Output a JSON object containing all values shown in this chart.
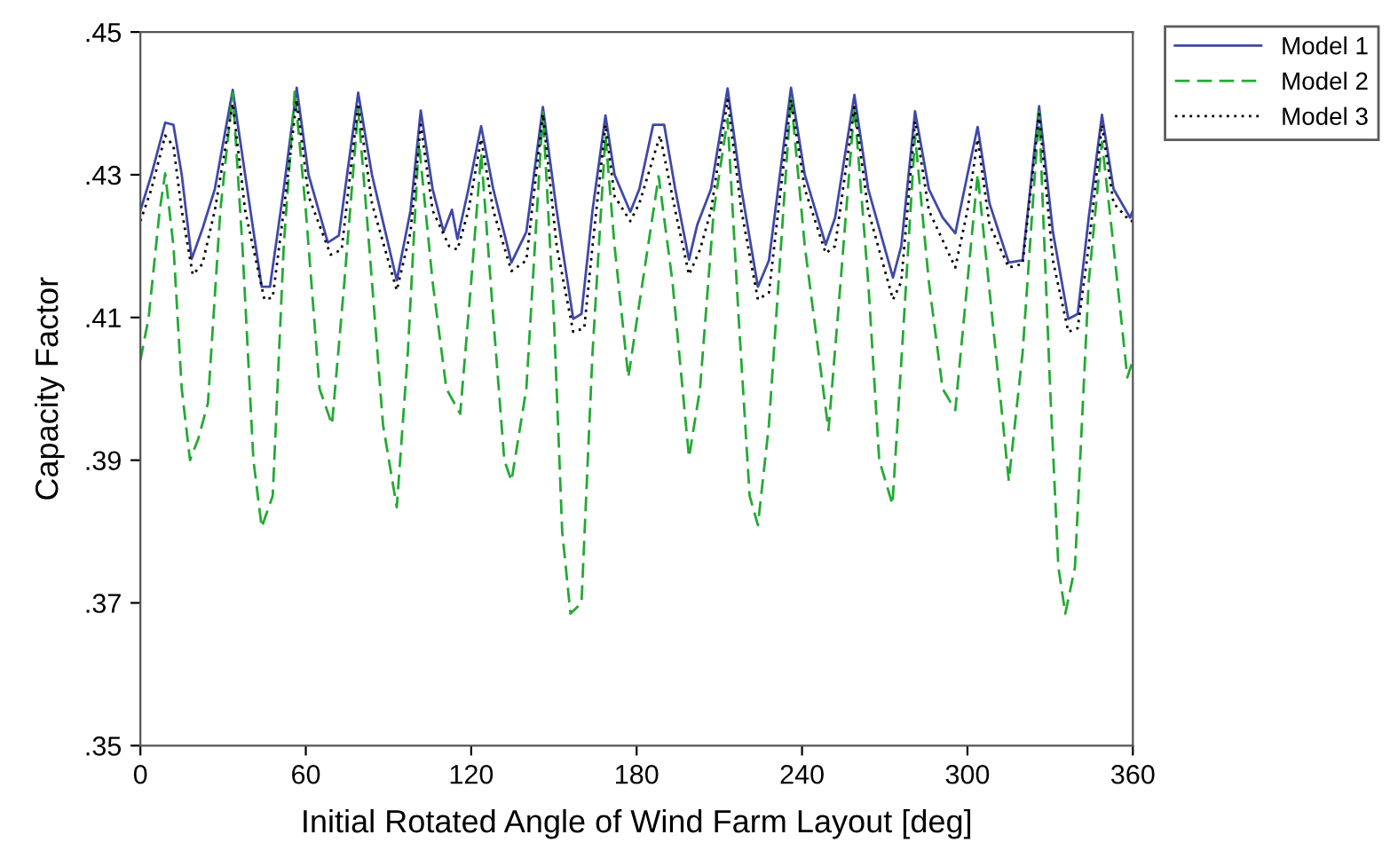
{
  "chart_data": {
    "type": "line",
    "xlabel": "Initial Rotated Angle of Wind Farm Layout [deg]",
    "ylabel": "Capacity Factor",
    "xlim": [
      0,
      360
    ],
    "xticks": [
      0,
      60,
      120,
      180,
      240,
      300,
      360
    ],
    "ylim": [
      0.35,
      0.45
    ],
    "yticks": [
      {
        "value": 0.35,
        "label": ".35"
      },
      {
        "value": 0.37,
        "label": ".37"
      },
      {
        "value": 0.39,
        "label": ".39"
      },
      {
        "value": 0.41,
        "label": ".41"
      },
      {
        "value": 0.43,
        "label": ".43"
      },
      {
        "value": 0.45,
        "label": ".45"
      }
    ],
    "grid": false,
    "legend": "top right",
    "marker": "none",
    "series": [
      {
        "name": "Model 1",
        "color": "#3f48a8",
        "line_style": "solid",
        "x": [
          0,
          4,
          9,
          12,
          15,
          18.6,
          22.5,
          27,
          33.5,
          38,
          44,
          47,
          52,
          56.7,
          61,
          68,
          72,
          79,
          84,
          93,
          98,
          101.7,
          106,
          110,
          113,
          115,
          119,
          123.6,
          128,
          134.6,
          140,
          146,
          151,
          157,
          160,
          164,
          168.7,
          172,
          177.7,
          181,
          186,
          190,
          194,
          199,
          202,
          207,
          213,
          218,
          224,
          228,
          236,
          241,
          248.6,
          252,
          259,
          264,
          273,
          276,
          281,
          286,
          291,
          295.6,
          300,
          303.7,
          308,
          315,
          320,
          326,
          331,
          336.6,
          340,
          344,
          348.8,
          353,
          359,
          360
        ],
        "values": [
          0.425,
          0.43,
          0.4373,
          0.437,
          0.43,
          0.4182,
          0.4224,
          0.428,
          0.4419,
          0.43,
          0.4143,
          0.4143,
          0.428,
          0.4422,
          0.43,
          0.4205,
          0.4215,
          0.4415,
          0.43,
          0.4152,
          0.425,
          0.439,
          0.428,
          0.422,
          0.4251,
          0.421,
          0.428,
          0.4368,
          0.428,
          0.4177,
          0.422,
          0.4395,
          0.425,
          0.4098,
          0.4105,
          0.425,
          0.4383,
          0.43,
          0.4248,
          0.428,
          0.437,
          0.437,
          0.428,
          0.4181,
          0.423,
          0.428,
          0.4421,
          0.428,
          0.4143,
          0.418,
          0.4422,
          0.43,
          0.4202,
          0.424,
          0.4412,
          0.428,
          0.4156,
          0.42,
          0.4389,
          0.428,
          0.424,
          0.4218,
          0.43,
          0.4367,
          0.426,
          0.4177,
          0.418,
          0.4396,
          0.422,
          0.4098,
          0.4105,
          0.424,
          0.4384,
          0.428,
          0.424,
          0.425
        ]
      },
      {
        "name": "Model 2",
        "color": "#22aa33",
        "line_style": "dashed",
        "x": [
          0,
          3,
          7,
          9,
          12,
          15,
          18,
          21,
          24.5,
          29,
          33.5,
          37,
          41,
          44,
          48,
          52,
          56,
          60,
          65,
          69.5,
          74,
          79,
          83,
          88,
          93,
          97,
          101,
          106,
          111,
          116,
          120,
          123.6,
          128,
          132,
          134.6,
          140,
          146,
          150,
          153,
          156,
          160,
          164,
          168.7,
          172,
          177,
          181,
          188,
          193,
          199,
          203,
          208,
          213,
          217,
          221,
          224,
          228,
          236,
          241,
          249.6,
          254,
          259,
          264,
          268,
          272.8,
          277,
          281,
          286,
          291,
          295.6,
          300,
          303.7,
          309,
          315,
          320,
          326,
          330,
          333,
          335.5,
          339,
          344,
          348.8,
          353,
          358,
          360
        ],
        "values": [
          0.404,
          0.41,
          0.425,
          0.4302,
          0.42,
          0.4,
          0.39,
          0.393,
          0.398,
          0.425,
          0.4415,
          0.42,
          0.39,
          0.3806,
          0.385,
          0.42,
          0.4418,
          0.425,
          0.4,
          0.395,
          0.415,
          0.4392,
          0.42,
          0.395,
          0.3834,
          0.405,
          0.4346,
          0.415,
          0.4,
          0.3965,
          0.415,
          0.433,
          0.41,
          0.39,
          0.3871,
          0.4,
          0.4388,
          0.41,
          0.38,
          0.3685,
          0.37,
          0.405,
          0.4355,
          0.42,
          0.4016,
          0.412,
          0.4298,
          0.415,
          0.3904,
          0.4,
          0.425,
          0.4378,
          0.41,
          0.385,
          0.3809,
          0.395,
          0.4409,
          0.42,
          0.3942,
          0.415,
          0.4396,
          0.415,
          0.39,
          0.3838,
          0.41,
          0.4355,
          0.415,
          0.4,
          0.397,
          0.415,
          0.4301,
          0.41,
          0.3871,
          0.405,
          0.4388,
          0.4,
          0.375,
          0.3685,
          0.375,
          0.415,
          0.4346,
          0.42,
          0.4016,
          0.404
        ]
      },
      {
        "name": "Model 3",
        "color": "#000000",
        "line_style": "dotted",
        "x": [
          0,
          4,
          9,
          12,
          15,
          19,
          22.5,
          27,
          33.5,
          38,
          45,
          48,
          52,
          56.7,
          61,
          69,
          73,
          79,
          84,
          93,
          98,
          101.7,
          106,
          112,
          115,
          119,
          123.6,
          128,
          134.6,
          140,
          146,
          151,
          157,
          161,
          164,
          168.7,
          172,
          177.7,
          181,
          188.5,
          194,
          199,
          203,
          207,
          213,
          218,
          224,
          228,
          236,
          241,
          248.6,
          252,
          259,
          264,
          273,
          276,
          281,
          286,
          295.6,
          300,
          303.7,
          308,
          315,
          320,
          326,
          331,
          336.6,
          340,
          344,
          348.8,
          353,
          359,
          360
        ],
        "values": [
          0.4235,
          0.428,
          0.4355,
          0.434,
          0.425,
          0.416,
          0.4175,
          0.425,
          0.44,
          0.425,
          0.4125,
          0.4128,
          0.425,
          0.4405,
          0.427,
          0.4188,
          0.4195,
          0.44,
          0.426,
          0.4138,
          0.422,
          0.437,
          0.425,
          0.42,
          0.4195,
          0.425,
          0.435,
          0.425,
          0.4165,
          0.418,
          0.4385,
          0.42,
          0.408,
          0.4085,
          0.42,
          0.437,
          0.427,
          0.4235,
          0.426,
          0.4355,
          0.425,
          0.416,
          0.4195,
          0.425,
          0.4405,
          0.425,
          0.4125,
          0.4135,
          0.4405,
          0.428,
          0.419,
          0.42,
          0.4395,
          0.425,
          0.4125,
          0.415,
          0.4375,
          0.425,
          0.417,
          0.425,
          0.435,
          0.423,
          0.417,
          0.4175,
          0.4385,
          0.418,
          0.408,
          0.4085,
          0.42,
          0.437,
          0.426,
          0.4235,
          0.4235
        ]
      }
    ]
  }
}
